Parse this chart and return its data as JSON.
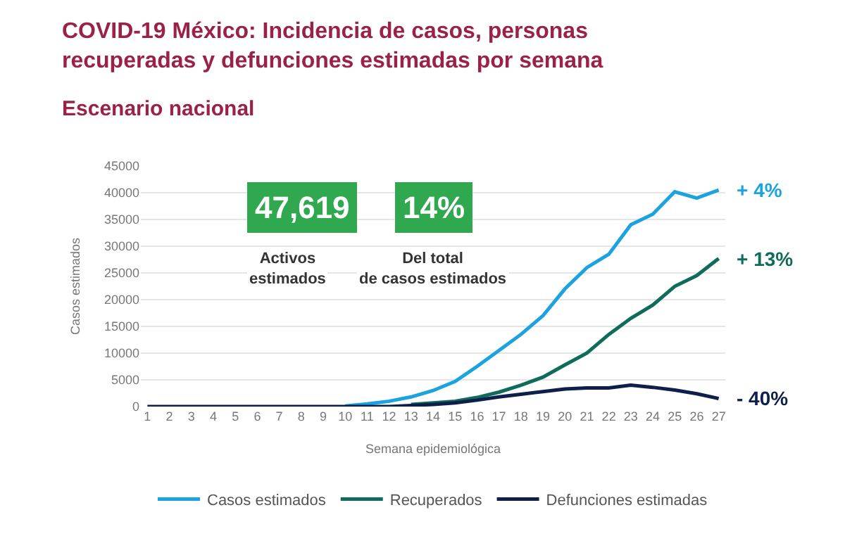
{
  "chart_data": {
    "type": "line",
    "title": "COVID-19 México: Incidencia de casos, personas\nrecuperadas y defunciones estimadas por semana",
    "subtitle": "Escenario nacional",
    "xlabel": "Semana epidemiológica",
    "ylabel": "Casos estimados",
    "x": [
      1,
      2,
      3,
      4,
      5,
      6,
      7,
      8,
      9,
      10,
      11,
      12,
      13,
      14,
      15,
      16,
      17,
      18,
      19,
      20,
      21,
      22,
      23,
      24,
      25,
      26,
      27
    ],
    "series": [
      {
        "name": "Casos estimados",
        "color": "#1ba3e0",
        "values": [
          null,
          null,
          null,
          null,
          null,
          null,
          null,
          null,
          null,
          100,
          500,
          1000,
          1800,
          3000,
          4700,
          7500,
          10500,
          13500,
          17000,
          22000,
          26000,
          28500,
          34000,
          36000,
          40200,
          39000,
          40500
        ]
      },
      {
        "name": "Recuperados",
        "color": "#0f6b5a",
        "values": [
          null,
          null,
          null,
          null,
          null,
          null,
          null,
          null,
          null,
          null,
          null,
          null,
          400,
          700,
          1000,
          1700,
          2700,
          4000,
          5500,
          7800,
          10000,
          13500,
          16500,
          19000,
          22500,
          24500,
          27700
        ]
      },
      {
        "name": "Defunciones estimadas",
        "color": "#0d1f4a",
        "values": [
          0,
          0,
          0,
          0,
          0,
          0,
          0,
          0,
          0,
          0,
          0,
          0,
          200,
          400,
          700,
          1200,
          1800,
          2300,
          2800,
          3300,
          3500,
          3500,
          4000,
          3600,
          3100,
          2400,
          1500
        ]
      }
    ],
    "annotations": [
      "+ 4%",
      "+ 13%",
      "- 40%",
      "47,619",
      "Activos estimados",
      "14%",
      "Del total de casos estimados"
    ],
    "xlim": [
      0.7,
      27.3
    ],
    "xticks": [
      1,
      2,
      3,
      4,
      5,
      6,
      7,
      8,
      9,
      10,
      11,
      12,
      13,
      14,
      15,
      16,
      17,
      18,
      19,
      20,
      21,
      22,
      23,
      24,
      25,
      26,
      27
    ],
    "ylim": [
      0,
      45000
    ],
    "yticks": [
      0,
      5000,
      10000,
      15000,
      20000,
      25000,
      30000,
      35000,
      40000,
      45000
    ],
    "grid": "y",
    "legend": "bottom",
    "marker": "none",
    "line_style": "solid"
  }
}
